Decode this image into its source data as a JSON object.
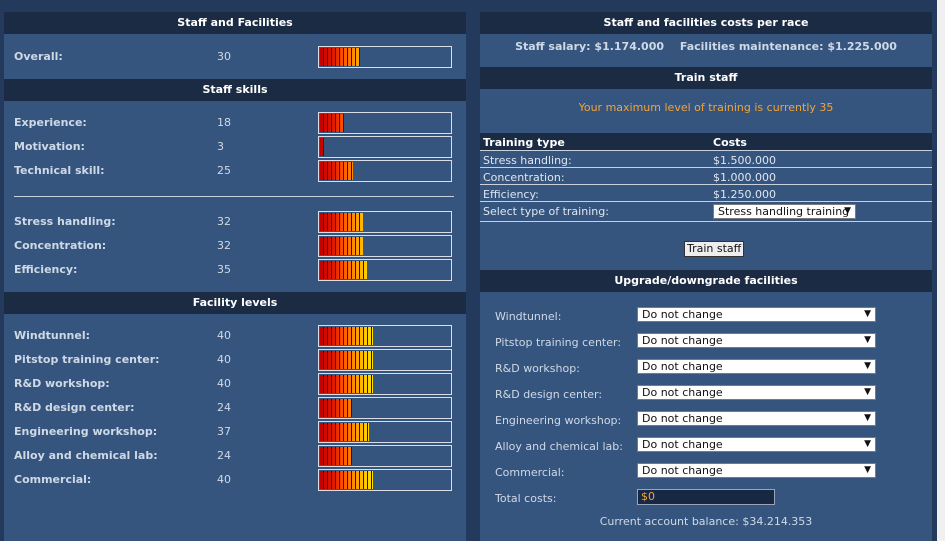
{
  "left": {
    "staff_facilities_title": "Staff and Facilities",
    "overall": {
      "label": "Overall:",
      "value": "30",
      "level": 30
    },
    "staff_skills_title": "Staff skills",
    "skills": [
      {
        "label": "Experience:",
        "value": "18",
        "level": 18
      },
      {
        "label": "Motivation:",
        "value": "3",
        "level": 3
      },
      {
        "label": "Technical skill:",
        "value": "25",
        "level": 25
      }
    ],
    "skills2": [
      {
        "label": "Stress handling:",
        "value": "32",
        "level": 32
      },
      {
        "label": "Concentration:",
        "value": "32",
        "level": 32
      },
      {
        "label": "Efficiency:",
        "value": "35",
        "level": 35
      }
    ],
    "facility_levels_title": "Facility levels",
    "facilities": [
      {
        "label": "Windtunnel:",
        "value": "40",
        "level": 40
      },
      {
        "label": "Pitstop training center:",
        "value": "40",
        "level": 40
      },
      {
        "label": "R&D workshop:",
        "value": "40",
        "level": 40
      },
      {
        "label": "R&D design center:",
        "value": "24",
        "level": 24
      },
      {
        "label": "Engineering workshop:",
        "value": "37",
        "level": 37
      },
      {
        "label": "Alloy and chemical lab:",
        "value": "24",
        "level": 24
      },
      {
        "label": "Commercial:",
        "value": "40",
        "level": 40
      }
    ]
  },
  "right": {
    "costs_title": "Staff and facilities costs per race",
    "staff_salary": "Staff salary: $1.174.000",
    "facilities_maintenance": "Facilities maintenance: $1.225.000",
    "train_staff_title": "Train staff",
    "training_notice": "Your maximum level of training is currently 35",
    "table_headers": {
      "type": "Training type",
      "costs": "Costs"
    },
    "training_rows": [
      {
        "type": "Stress handling:",
        "cost": "$1.500.000"
      },
      {
        "type": "Concentration:",
        "cost": "$1.000.000"
      },
      {
        "type": "Efficiency:",
        "cost": "$1.250.000"
      }
    ],
    "select_training_label": "Select type of training:",
    "select_training_value": "Stress handling training",
    "train_button": "Train staff",
    "upgrade_title": "Upgrade/downgrade facilities",
    "facility_changes": [
      {
        "label": "Windtunnel:",
        "value": "Do not change"
      },
      {
        "label": "Pitstop training center:",
        "value": "Do not change"
      },
      {
        "label": "R&D workshop:",
        "value": "Do not change"
      },
      {
        "label": "R&D design center:",
        "value": "Do not change"
      },
      {
        "label": "Engineering workshop:",
        "value": "Do not change"
      },
      {
        "label": "Alloy and chemical lab:",
        "value": "Do not change"
      },
      {
        "label": "Commercial:",
        "value": "Do not change"
      }
    ],
    "total_costs_label": "Total costs:",
    "total_costs_value": "$0",
    "account_balance": "Current account balance: $34.214.353"
  },
  "colors": {
    "page_bg": "#233a5c",
    "panel_bg": "#35557f",
    "header_bg": "#1b2b44",
    "notice": "#f2a33a"
  }
}
